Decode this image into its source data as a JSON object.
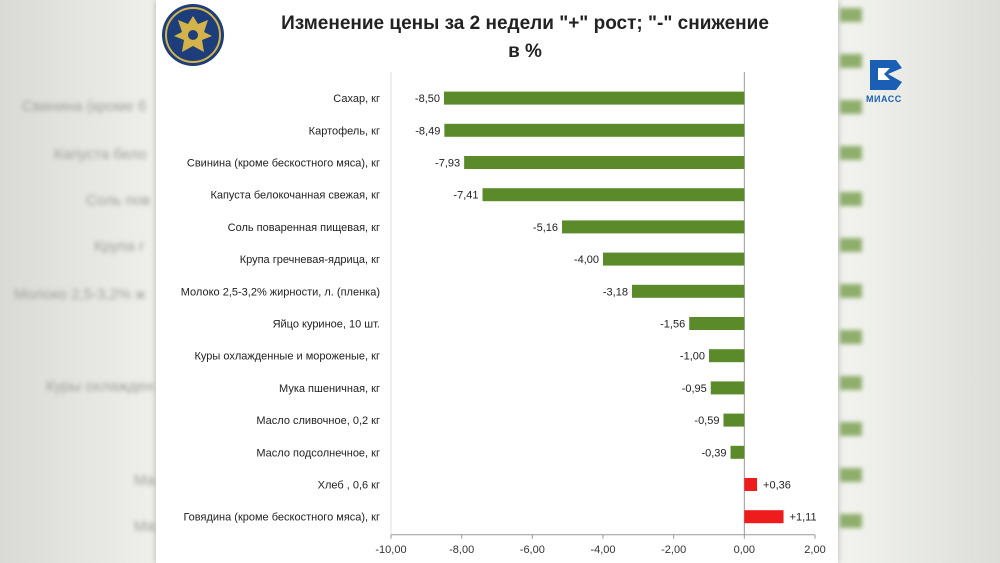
{
  "channel": {
    "logo_text": "МИАСС",
    "icon": "channel-logo-icon",
    "color": "#1a5fb4"
  },
  "emblem": {
    "icon": "coat-of-arms-emblem"
  },
  "background_ghost_labels": [
    "Свинина (кроме б",
    "Капуста бело",
    "Соль пов",
    "Крупа г",
    "Молоко 2,5-3,2% ж",
    "",
    "Куры охлажден",
    "Ма",
    "Ма"
  ],
  "colors": {
    "decrease": "#5a8a2a",
    "increase": "#ee1c1c",
    "axis": "#999999"
  },
  "chart_data": {
    "type": "bar",
    "orientation": "horizontal",
    "title_line1": "Изменение цены за 2 недели \"+\" рост; \"-\" снижение",
    "title_line2": "в %",
    "xlim": [
      -10,
      2
    ],
    "xticks": [
      "-10,00",
      "-8,00",
      "-6,00",
      "-4,00",
      "-2,00",
      "0,00",
      "2,00"
    ],
    "xtick_values": [
      -10,
      -8,
      -6,
      -4,
      -2,
      0,
      2
    ],
    "categories": [
      "Сахар, кг",
      "Картофель, кг",
      "Свинина (кроме бескостного мяса), кг",
      "Капуста белокочанная свежая, кг",
      "Соль поваренная пищевая, кг",
      "Крупа гречневая-ядрица, кг",
      "Молоко 2,5-3,2% жирности, л. (пленка)",
      "Яйцо куриное, 10 шт.",
      "Куры охлажденные и мороженые, кг",
      "Мука пшеничная, кг",
      "Масло сливочное, 0,2 кг",
      "Масло подсолнечное, кг",
      "Хлеб , 0,6 кг",
      "Говядина (кроме бескостного мяса), кг"
    ],
    "values": [
      -8.5,
      -8.49,
      -7.93,
      -7.41,
      -5.16,
      -4.0,
      -3.18,
      -1.56,
      -1.0,
      -0.95,
      -0.59,
      -0.39,
      0.36,
      1.11
    ],
    "value_labels": [
      "-8,50",
      "-8,49",
      "-7,93",
      "-7,41",
      "-5,16",
      "-4,00",
      "-3,18",
      "-1,56",
      "-1,00",
      "-0,95",
      "-0,59",
      "-0,39",
      "+0,36",
      "+1,11"
    ]
  }
}
